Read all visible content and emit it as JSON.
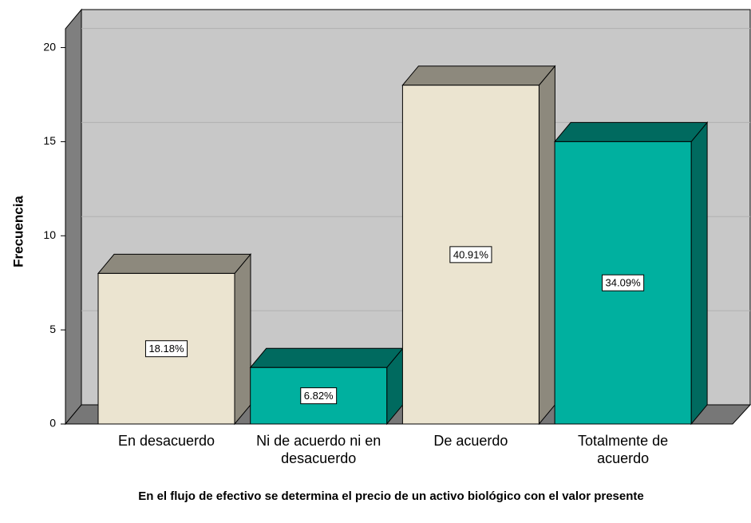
{
  "chart_data": {
    "type": "bar",
    "ylabel": "Frecuencia",
    "xlabel": "En el flujo de efectivo se determina el precio de un activo biológico con el valor presente",
    "categories": [
      "En desacuerdo",
      "Ni de acuerdo ni en desacuerdo",
      "De acuerdo",
      "Totalmente de acuerdo"
    ],
    "values": [
      8,
      3,
      18,
      15
    ],
    "data_labels": [
      "18.18%",
      "6.82%",
      "40.91%",
      "34.09%"
    ],
    "colors": [
      "#ebe4d0",
      "#00b09f",
      "#ebe4d0",
      "#00b09f"
    ],
    "ylim": [
      0,
      21
    ],
    "yticks": [
      0,
      5,
      10,
      15,
      20
    ],
    "grid": true
  }
}
